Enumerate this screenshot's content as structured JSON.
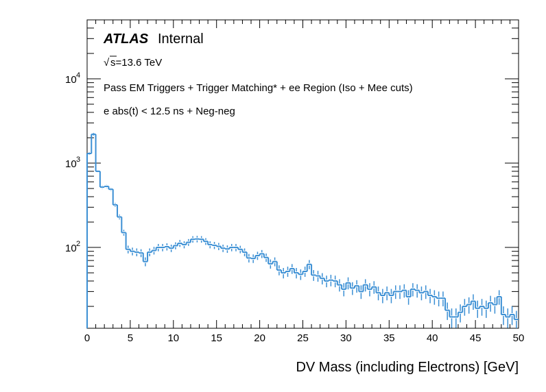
{
  "chart_data": {
    "type": "histogram",
    "title": "",
    "xlabel": "DV Mass (including Electrons) [GeV]",
    "ylabel": "",
    "xlim": [
      0,
      50
    ],
    "ylim": [
      11,
      50000
    ],
    "log_y": true,
    "grid": false,
    "legend": "none",
    "line_color": "#3b8fd4",
    "x_ticks": [
      "0",
      "5",
      "10",
      "15",
      "20",
      "25",
      "30",
      "35",
      "40",
      "45",
      "50"
    ],
    "y_ticks": [
      {
        "base": "10",
        "exp": "2",
        "value": 100
      },
      {
        "base": "10",
        "exp": "3",
        "value": 1000
      },
      {
        "base": "10",
        "exp": "4",
        "value": 10000
      }
    ],
    "annotations": {
      "atlas": "ATLAS",
      "status": "Internal",
      "sqrt_sign": "√",
      "energy": "s=13.6 TeV",
      "selection": "Pass EM Triggers + Trigger Matching* + ee Region (Iso + Mee cuts)",
      "cuts": "e abs(t) < 12.5 ns + Neg-neg"
    },
    "bin_width": 0.5,
    "bin_starts": [
      0,
      0.5,
      1,
      1.5,
      2,
      2.5,
      3,
      3.5,
      4,
      4.5,
      5,
      5.5,
      6,
      6.5,
      7,
      7.5,
      8,
      8.5,
      9,
      9.5,
      10,
      10.5,
      11,
      11.5,
      12,
      12.5,
      13,
      13.5,
      14,
      14.5,
      15,
      15.5,
      16,
      16.5,
      17,
      17.5,
      18,
      18.5,
      19,
      19.5,
      20,
      20.5,
      21,
      21.5,
      22,
      22.5,
      23,
      23.5,
      24,
      24.5,
      25,
      25.5,
      26,
      26.5,
      27,
      27.5,
      28,
      28.5,
      29,
      29.5,
      30,
      30.5,
      31,
      31.5,
      32,
      32.5,
      33,
      33.5,
      34,
      34.5,
      35,
      35.5,
      36,
      36.5,
      37,
      37.5,
      38,
      38.5,
      39,
      39.5,
      40,
      40.5,
      41,
      41.5,
      42,
      42.5,
      43,
      43.5,
      44,
      44.5,
      45,
      45.5,
      46,
      46.5,
      47,
      47.5,
      48,
      48.5,
      49,
      49.5
    ],
    "values": [
      1300,
      2200,
      800,
      520,
      530,
      490,
      320,
      230,
      150,
      95,
      90,
      88,
      86,
      68,
      88,
      92,
      100,
      100,
      102,
      98,
      105,
      112,
      108,
      115,
      125,
      126,
      125,
      118,
      108,
      106,
      103,
      98,
      96,
      100,
      100,
      95,
      88,
      75,
      74,
      80,
      84,
      76,
      64,
      68,
      54,
      50,
      52,
      56,
      50,
      48,
      52,
      63,
      47,
      46,
      43,
      40,
      41,
      40,
      36,
      32,
      38,
      33,
      35,
      30,
      36,
      32,
      34,
      29,
      27,
      29,
      27,
      30,
      30,
      31,
      26,
      32,
      31,
      29,
      30,
      27,
      26,
      25,
      25,
      18,
      15,
      15,
      17,
      20,
      21,
      23,
      19,
      20,
      19,
      22,
      21,
      26,
      16,
      15,
      16,
      14
    ],
    "errors": [
      36,
      47,
      28,
      23,
      23,
      22,
      18,
      15,
      12,
      10,
      9.5,
      9.4,
      9.3,
      8.2,
      9.4,
      9.6,
      10,
      10,
      10,
      9.9,
      10,
      10.6,
      10.4,
      10.7,
      11,
      11.2,
      11.2,
      10.9,
      10.4,
      10.3,
      10.1,
      9.9,
      9.8,
      10,
      10,
      9.7,
      9.4,
      8.7,
      8.6,
      8.9,
      9.2,
      8.7,
      8,
      8.2,
      7.3,
      7.1,
      7.2,
      7.5,
      7.1,
      6.9,
      7.2,
      7.9,
      6.9,
      6.8,
      6.6,
      6.3,
      6.4,
      6.3,
      6,
      5.7,
      6.2,
      5.7,
      5.9,
      5.5,
      6,
      5.7,
      5.8,
      5.4,
      5.2,
      5.4,
      5.2,
      5.5,
      5.5,
      5.6,
      5.1,
      5.7,
      5.6,
      5.4,
      5.5,
      5.2,
      5.1,
      5,
      5,
      4.2,
      3.9,
      3.9,
      4.1,
      4.5,
      4.6,
      4.8,
      4.4,
      4.5,
      4.4,
      4.7,
      4.6,
      5.1,
      4,
      3.9,
      4,
      3.7
    ]
  }
}
